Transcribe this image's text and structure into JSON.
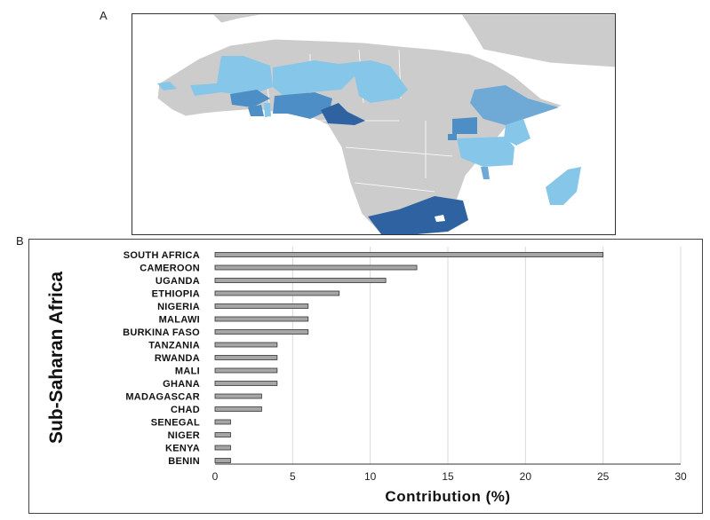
{
  "panels": {
    "a_label": "A",
    "b_label": "B"
  },
  "map": {
    "land_color": "#cccccc",
    "border_color": "#ffffff",
    "shades": {
      "darkest": "#2e62a0",
      "dark": "#4d8ec6",
      "medium": "#6fa9d6",
      "light": "#86c6e8"
    }
  },
  "chart_data": {
    "type": "bar",
    "orientation": "horizontal",
    "categories": [
      "SOUTH AFRICA",
      "CAMEROON",
      "UGANDA",
      "ETHIOPIA",
      "NIGERIA",
      "MALAWI",
      "BURKINA FASO",
      "TANZANIA",
      "RWANDA",
      "MALI",
      "GHANA",
      "MADAGASCAR",
      "CHAD",
      "SENEGAL",
      "NIGER",
      "KENYA",
      "BENIN"
    ],
    "values": [
      25,
      13,
      11,
      8,
      6,
      6,
      6,
      4,
      4,
      4,
      4,
      3,
      3,
      1,
      1,
      1,
      1
    ],
    "xlabel": "Contribution (%)",
    "ylabel": "Sub-Saharan Africa",
    "xlim": [
      0,
      30
    ],
    "xticks": [
      "0",
      "5",
      "10",
      "15",
      "20",
      "25",
      "30"
    ],
    "grid": "vertical",
    "bar_color": "#a6a6a6",
    "bar_edge": "#333333"
  }
}
